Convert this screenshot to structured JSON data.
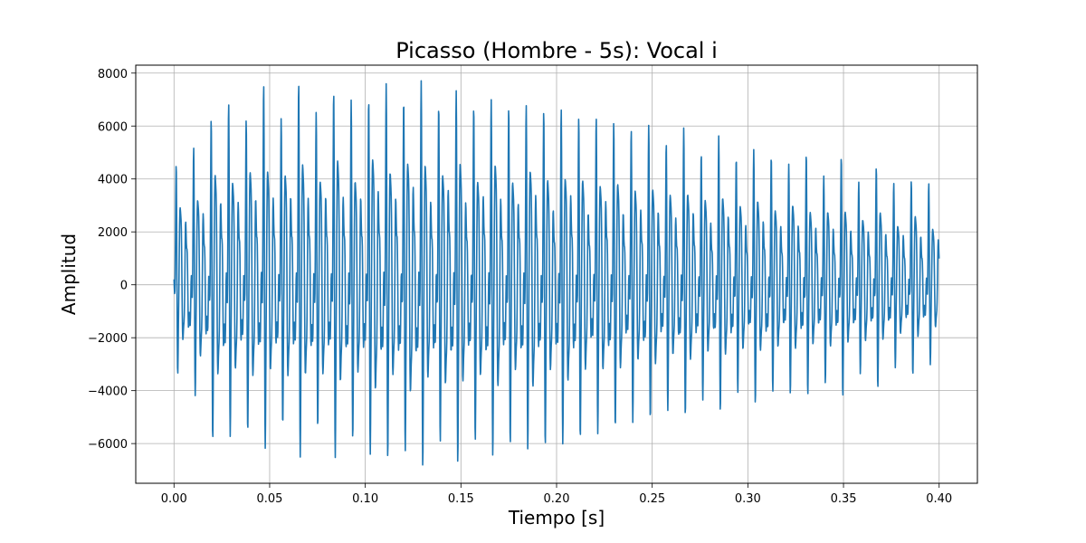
{
  "chart_data": {
    "type": "line",
    "title": "Picasso (Hombre - 5s): Vocal i",
    "xlabel": "Tiempo [s]",
    "ylabel": "Amplitud",
    "xlim": [
      -0.02,
      0.42
    ],
    "ylim": [
      -7500,
      8300
    ],
    "xticks": [
      0.0,
      0.05,
      0.1,
      0.15,
      0.2,
      0.25,
      0.3,
      0.35,
      0.4
    ],
    "xtick_labels": [
      "0.00",
      "0.05",
      "0.10",
      "0.15",
      "0.20",
      "0.25",
      "0.30",
      "0.35",
      "0.40"
    ],
    "yticks": [
      -6000,
      -4000,
      -2000,
      0,
      2000,
      4000,
      6000,
      8000
    ],
    "ytick_labels": [
      "−6000",
      "−4000",
      "−2000",
      "0",
      "2000",
      "4000",
      "6000",
      "8000"
    ],
    "grid": true,
    "series": [
      {
        "color": "#1f77b4",
        "x_range": [
          0.0,
          0.4
        ],
        "period_s": 0.00915,
        "peak_envelope": {
          "t": [
            0.0,
            0.02,
            0.05,
            0.09,
            0.12,
            0.15,
            0.2,
            0.25,
            0.3,
            0.35,
            0.4
          ],
          "max": [
            4200,
            6400,
            7000,
            7000,
            7400,
            7000,
            6600,
            5800,
            5000,
            4400,
            3700
          ],
          "min": [
            -2900,
            -5700,
            -5800,
            -6100,
            -6600,
            -6300,
            -6100,
            -5000,
            -4300,
            -3900,
            -3000
          ]
        }
      }
    ]
  }
}
